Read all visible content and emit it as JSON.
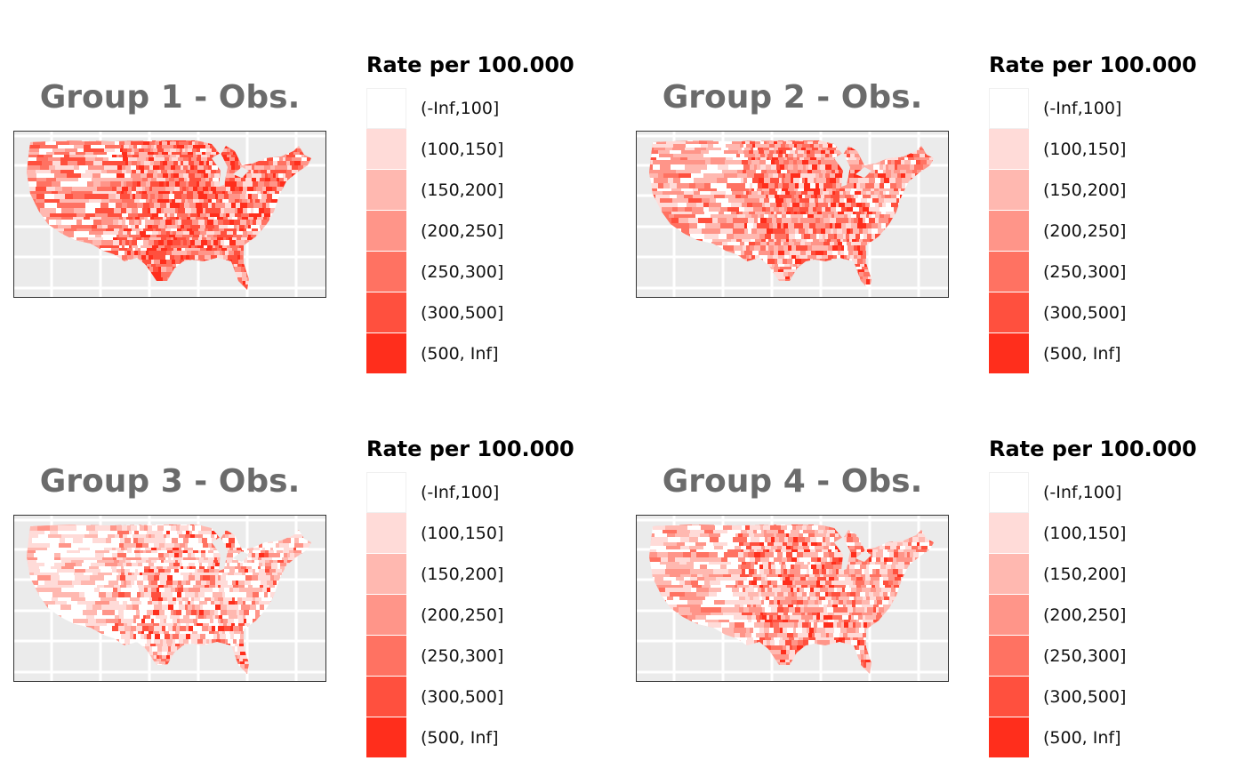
{
  "palette": [
    "#ffffff",
    "#ffdbd8",
    "#ffb8b0",
    "#ff9589",
    "#ff7262",
    "#ff503e",
    "#ff2e1c"
  ],
  "panels": [
    {
      "title": "Group 1 - Obs.",
      "legend": {
        "title": "Rate per 100.000",
        "items": [
          "(-Inf,100]",
          "(100,150]",
          "(150,200]",
          "(200,250]",
          "(250,300]",
          "(300,500]",
          "(500, Inf]"
        ]
      },
      "rate_mix": [
        0.08,
        0.1,
        0.14,
        0.18,
        0.18,
        0.2,
        0.12
      ]
    },
    {
      "title": "Group 2 - Obs.",
      "legend": {
        "title": "Rate per 100.000",
        "items": [
          "(-Inf,100]",
          "(100,150]",
          "(150,200]",
          "(200,250]",
          "(250,300]",
          "(300,500]",
          "(500, Inf]"
        ]
      },
      "rate_mix": [
        0.12,
        0.16,
        0.2,
        0.2,
        0.15,
        0.12,
        0.05
      ]
    },
    {
      "title": "Group 3 - Obs.",
      "legend": {
        "title": "Rate per 100.000",
        "items": [
          "(-Inf,100]",
          "(100,150]",
          "(150,200]",
          "(200,250]",
          "(250,300]",
          "(300,500]",
          "(500, Inf]"
        ]
      },
      "rate_mix": [
        0.28,
        0.28,
        0.2,
        0.12,
        0.07,
        0.04,
        0.01
      ]
    },
    {
      "title": "Group 4 - Obs.",
      "legend": {
        "title": "Rate per 100.000",
        "items": [
          "(-Inf,100]",
          "(100,150]",
          "(150,200]",
          "(200,250]",
          "(250,300]",
          "(300,500]",
          "(500, Inf]"
        ]
      },
      "rate_mix": [
        0.16,
        0.2,
        0.22,
        0.18,
        0.12,
        0.09,
        0.03
      ]
    }
  ]
}
